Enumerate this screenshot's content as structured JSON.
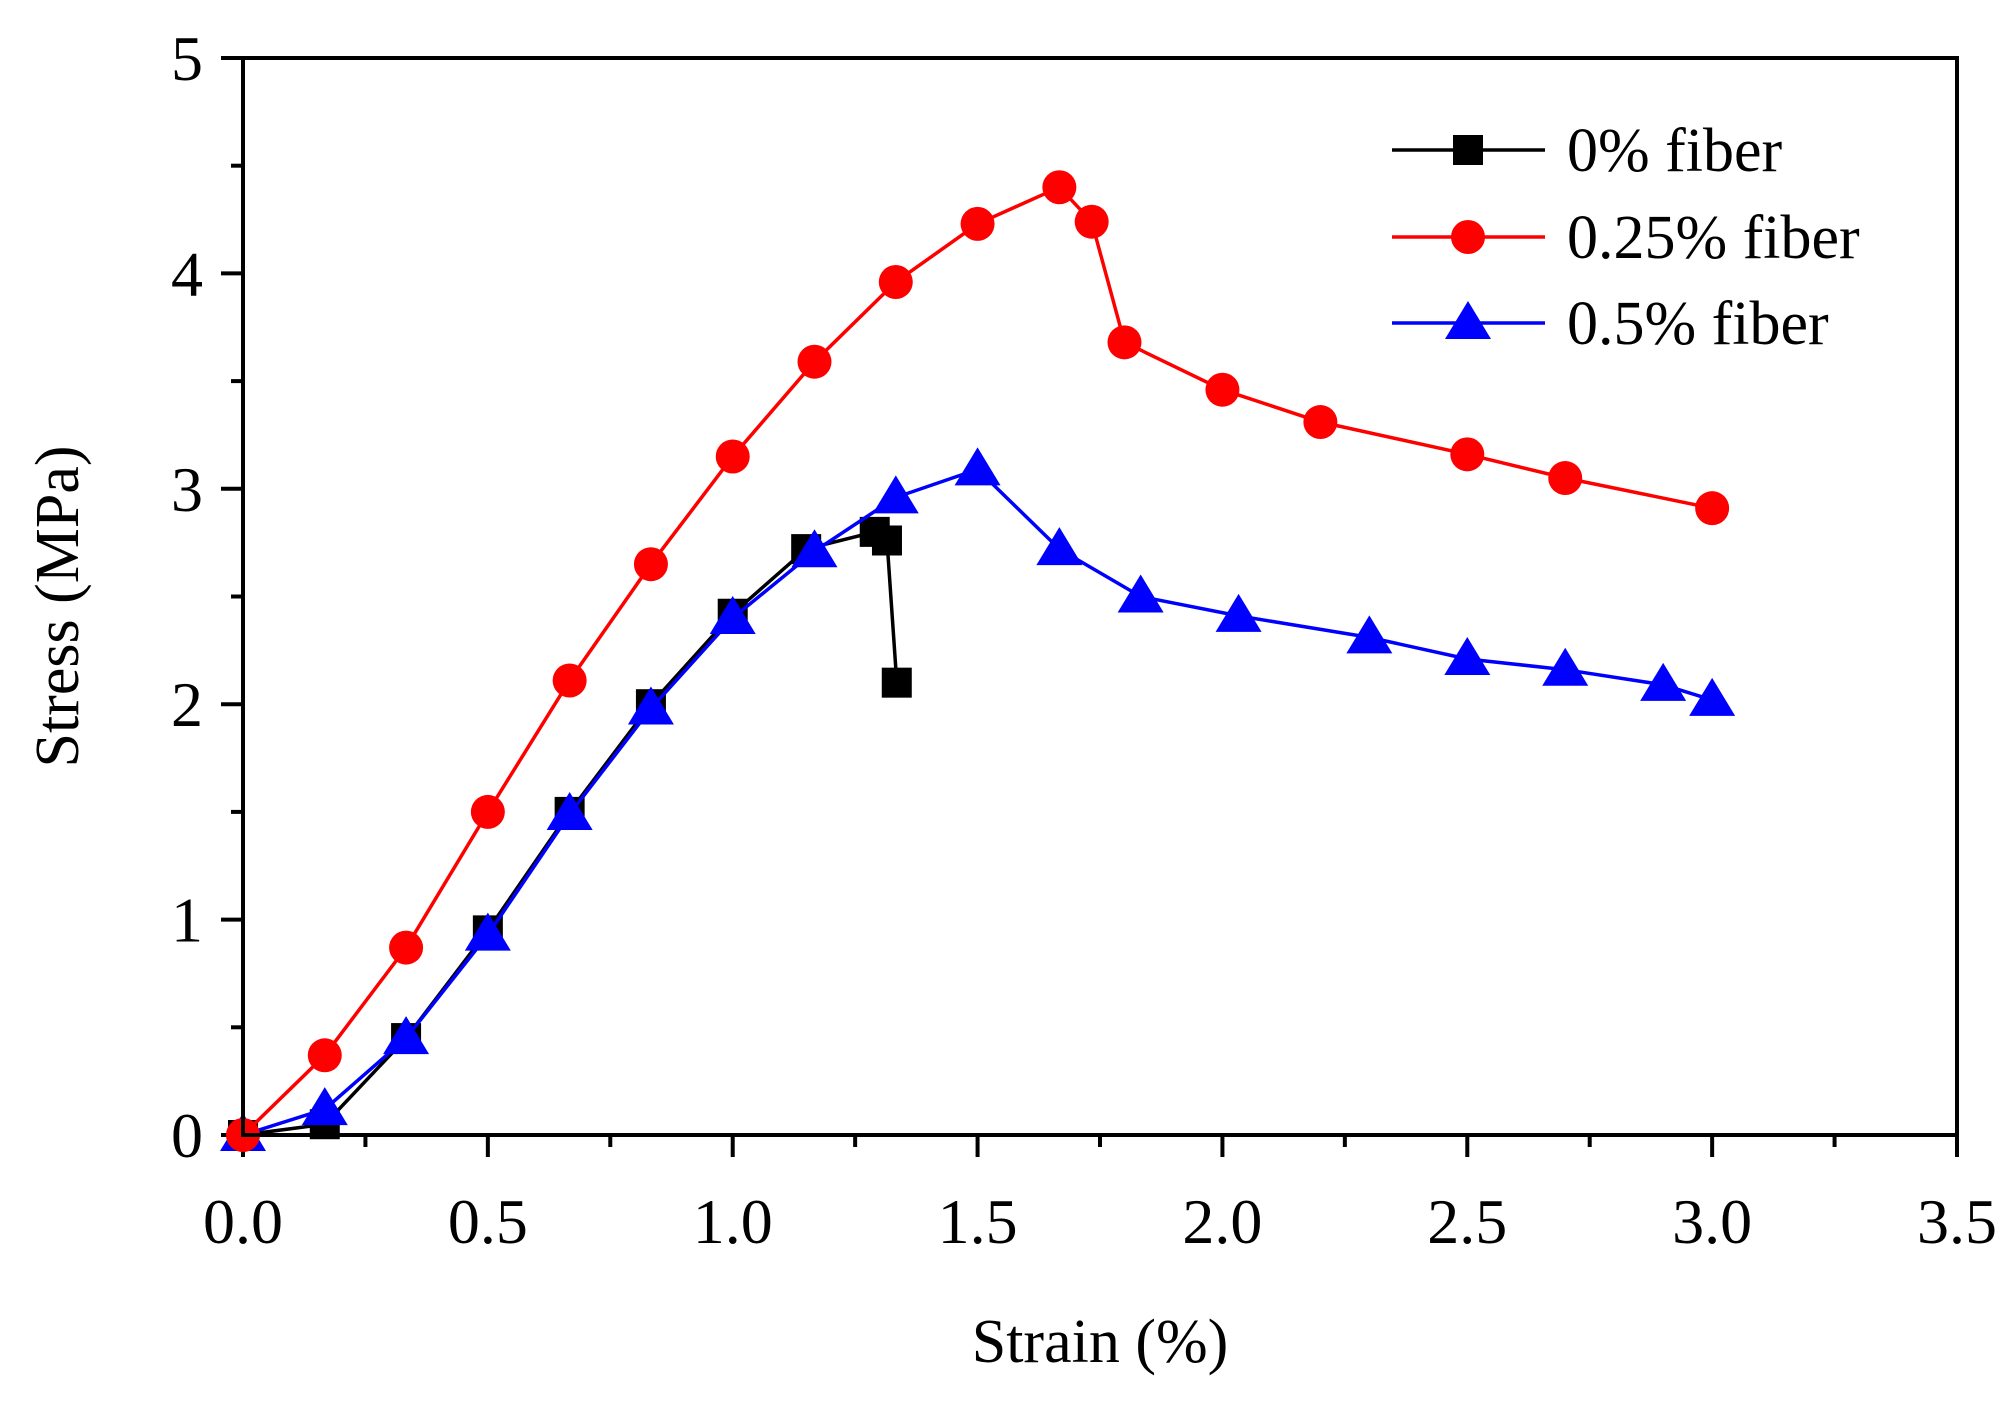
{
  "chart_data": {
    "type": "line",
    "title": "",
    "xlabel": "Strain (%)",
    "ylabel": "Stress (MPa)",
    "xlim": [
      0,
      3.5
    ],
    "ylim": [
      0,
      5
    ],
    "x_major_ticks": [
      0.0,
      0.5,
      1.0,
      1.5,
      2.0,
      2.5,
      3.0,
      3.5
    ],
    "x_tick_labels": [
      "0.0",
      "0.5",
      "1.0",
      "1.5",
      "2.0",
      "2.5",
      "3.0",
      "3.5"
    ],
    "x_minor_ticks": [
      0.25,
      0.75,
      1.25,
      1.75,
      2.25,
      2.75,
      3.25
    ],
    "y_major_ticks": [
      0,
      1,
      2,
      3,
      4,
      5
    ],
    "y_tick_labels": [
      "0",
      "1",
      "2",
      "3",
      "4",
      "5"
    ],
    "y_minor_ticks": [
      0.5,
      1.5,
      2.5,
      3.5,
      4.5
    ],
    "grid": false,
    "legend_position": "top-right",
    "series": [
      {
        "name": "0% fiber",
        "color": "#000000",
        "marker": "square",
        "points": [
          [
            0.0,
            0.0
          ],
          [
            0.167,
            0.05
          ],
          [
            0.333,
            0.45
          ],
          [
            0.5,
            0.95
          ],
          [
            0.667,
            1.5
          ],
          [
            0.833,
            2.0
          ],
          [
            1.0,
            2.42
          ],
          [
            1.15,
            2.72
          ],
          [
            1.29,
            2.8
          ],
          [
            1.315,
            2.76
          ],
          [
            1.335,
            2.1
          ]
        ]
      },
      {
        "name": "0.25% fiber",
        "color": "#ff0000",
        "marker": "circle",
        "points": [
          [
            0.0,
            0.0
          ],
          [
            0.167,
            0.37
          ],
          [
            0.333,
            0.87
          ],
          [
            0.5,
            1.5
          ],
          [
            0.667,
            2.11
          ],
          [
            0.833,
            2.65
          ],
          [
            1.0,
            3.15
          ],
          [
            1.167,
            3.59
          ],
          [
            1.333,
            3.96
          ],
          [
            1.5,
            4.23
          ],
          [
            1.667,
            4.4
          ],
          [
            1.733,
            4.24
          ],
          [
            1.8,
            3.68
          ],
          [
            2.0,
            3.46
          ],
          [
            2.2,
            3.31
          ],
          [
            2.5,
            3.16
          ],
          [
            2.7,
            3.05
          ],
          [
            3.0,
            2.91
          ]
        ]
      },
      {
        "name": "0.5% fiber",
        "color": "#0000ff",
        "marker": "triangle",
        "points": [
          [
            0.0,
            0.0
          ],
          [
            0.167,
            0.12
          ],
          [
            0.333,
            0.45
          ],
          [
            0.5,
            0.93
          ],
          [
            0.667,
            1.49
          ],
          [
            0.833,
            1.98
          ],
          [
            1.0,
            2.4
          ],
          [
            1.167,
            2.71
          ],
          [
            1.333,
            2.96
          ],
          [
            1.5,
            3.09
          ],
          [
            1.667,
            2.72
          ],
          [
            1.833,
            2.5
          ],
          [
            2.033,
            2.41
          ],
          [
            2.3,
            2.31
          ],
          [
            2.5,
            2.21
          ],
          [
            2.7,
            2.16
          ],
          [
            2.9,
            2.09
          ],
          [
            3.0,
            2.02
          ]
        ]
      }
    ]
  }
}
